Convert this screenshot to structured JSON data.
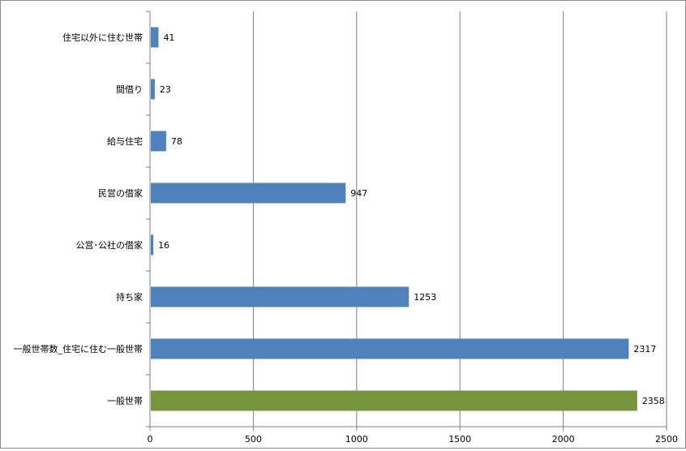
{
  "chart_data": {
    "type": "bar",
    "orientation": "horizontal",
    "categories": [
      "住宅以外に住む世帯",
      "間借り",
      "給与住宅",
      "民営の借家",
      "公営･公社の借家",
      "持ち家",
      "一般世帯数_住宅に住む一般世帯",
      "一般世帯"
    ],
    "values": [
      41,
      23,
      78,
      947,
      16,
      1253,
      2317,
      2358
    ],
    "data_labels": [
      "41",
      "23",
      "78",
      "947",
      "16",
      "1253",
      "2317",
      "2358"
    ],
    "bar_colors": [
      "#4f81bd",
      "#4f81bd",
      "#4f81bd",
      "#4f81bd",
      "#4f81bd",
      "#4f81bd",
      "#4f81bd",
      "#77933c"
    ],
    "xlim": [
      0,
      2500
    ],
    "x_ticks": [
      0,
      500,
      1000,
      1500,
      2000,
      2500
    ],
    "x_tick_labels": [
      "0",
      "500",
      "1000",
      "1500",
      "2000",
      "2500"
    ],
    "grid": "vertical major gridlines",
    "legend": "none",
    "title": "",
    "xlabel": "",
    "ylabel": ""
  }
}
